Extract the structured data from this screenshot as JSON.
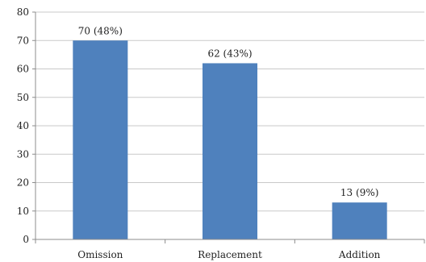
{
  "chart_data": {
    "type": "bar",
    "categories": [
      "Omission",
      "Replacement",
      "Addition"
    ],
    "values": [
      70,
      62,
      13
    ],
    "data_labels": [
      "70 (48%)",
      "62 (43%)",
      "13 (9%)"
    ],
    "yticks": [
      "0",
      "10",
      "20",
      "30",
      "40",
      "50",
      "60",
      "70",
      "80"
    ],
    "ylim": [
      0,
      80
    ],
    "grid": true,
    "bar_color": "#4f81bd",
    "grid_color": "#c9c9c9",
    "axis_color": "#8c8c8c"
  }
}
